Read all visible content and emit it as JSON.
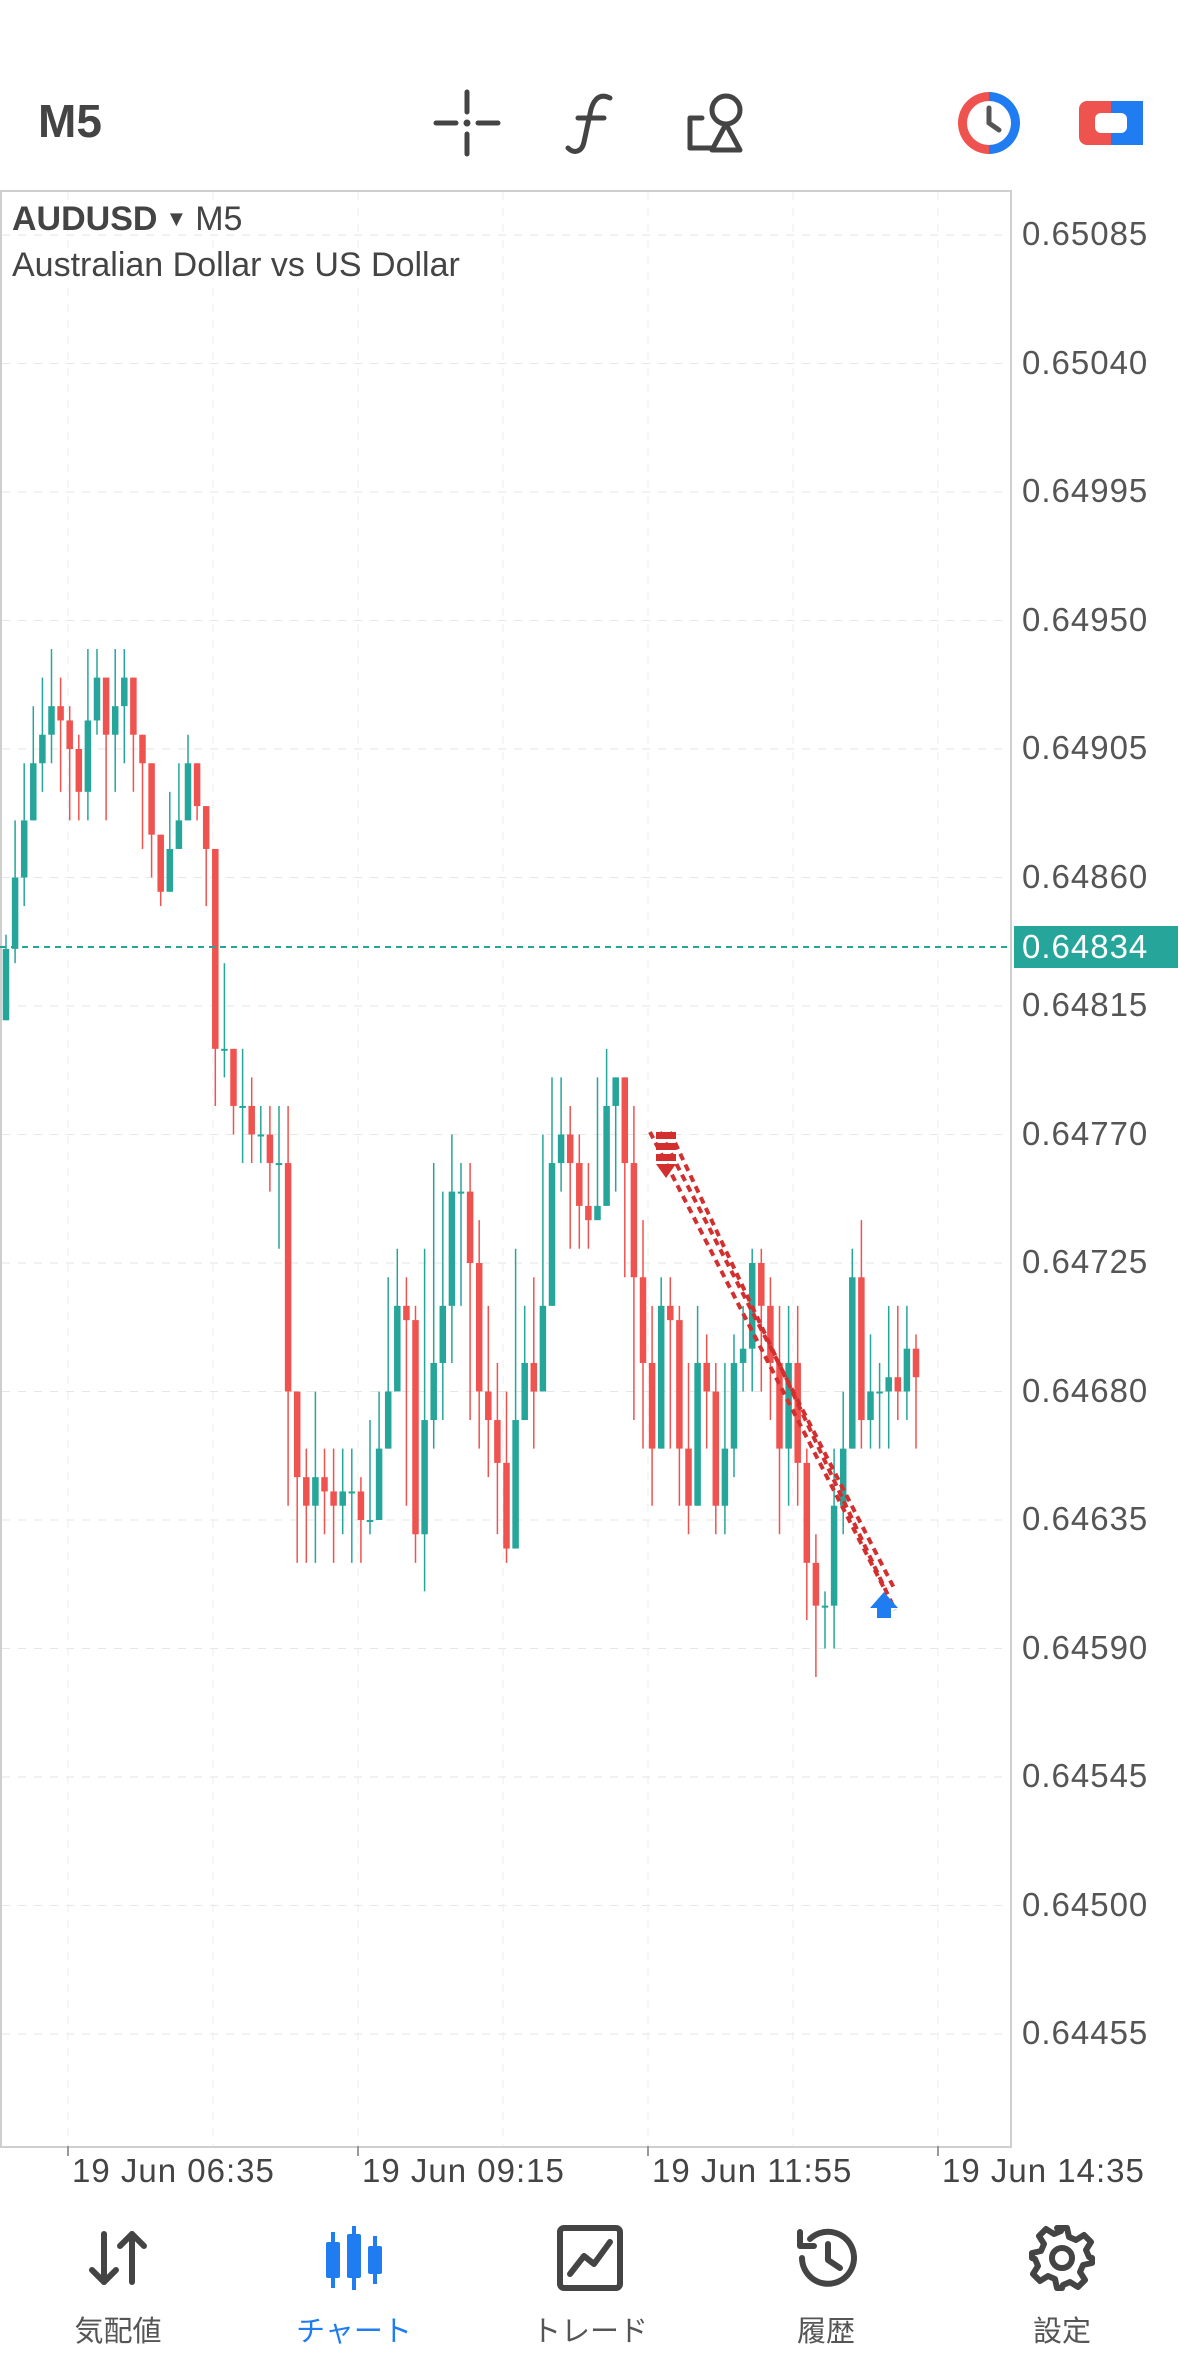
{
  "toolbar": {
    "timeframe": "M5",
    "icons": [
      "crosshair-icon",
      "function-icon",
      "objects-icon",
      "one-click-trading-icon",
      "trade-icon"
    ]
  },
  "chart": {
    "symbol": "AUDUSD",
    "timeframe": "M5",
    "description": "Australian Dollar vs US Dollar",
    "current_price": "0.64834",
    "price_labels": [
      "0.65085",
      "0.65040",
      "0.64995",
      "0.64950",
      "0.64905",
      "0.64860",
      "0.64815",
      "0.64770",
      "0.64725",
      "0.64680",
      "0.64635",
      "0.64590",
      "0.64545",
      "0.64500",
      "0.64455"
    ],
    "time_labels": [
      "19 Jun 06:35",
      "19 Jun 09:15",
      "19 Jun 11:55",
      "19 Jun 14:35"
    ],
    "colors": {
      "bull": "#26a69a",
      "bear": "#ef5350",
      "trade_line": "#d32f2f",
      "buy_arrow": "#1f7cf1"
    }
  },
  "chart_data": {
    "type": "candlestick",
    "title": "AUDUSD",
    "xlabel": "",
    "ylabel": "",
    "ylim": [
      0.6441,
      0.6511
    ],
    "grid": true,
    "x_ticks": [
      "19 Jun 06:35",
      "19 Jun 09:15",
      "19 Jun 11:55",
      "19 Jun 14:35"
    ],
    "y_ticks": [
      0.65085,
      0.6504,
      0.64995,
      0.6495,
      0.64905,
      0.6486,
      0.64815,
      0.6477,
      0.64725,
      0.6468,
      0.64635,
      0.6459,
      0.64545,
      0.645,
      0.64455
    ],
    "current_price": 0.64834,
    "close": [
      0.64835,
      0.6486,
      0.6488,
      0.649,
      0.6491,
      0.6492,
      0.64915,
      0.64905,
      0.6489,
      0.64915,
      0.6493,
      0.6491,
      0.6492,
      0.6493,
      0.6491,
      0.649,
      0.64875,
      0.64855,
      0.6487,
      0.6488,
      0.649,
      0.64885,
      0.6487,
      0.648,
      0.648,
      0.6478,
      0.6478,
      0.6477,
      0.6477,
      0.6476,
      0.6476,
      0.6468,
      0.6465,
      0.6464,
      0.6465,
      0.64645,
      0.6464,
      0.64645,
      0.64645,
      0.64635,
      0.64635,
      0.6466,
      0.6468,
      0.6471,
      0.64705,
      0.6463,
      0.6467,
      0.6469,
      0.6471,
      0.6475,
      0.6475,
      0.64725,
      0.6468,
      0.6467,
      0.64655,
      0.64625,
      0.6467,
      0.6469,
      0.6468,
      0.6471,
      0.6476,
      0.6477,
      0.6476,
      0.64745,
      0.6474,
      0.64745,
      0.6478,
      0.6479,
      0.6476,
      0.6472,
      0.6469,
      0.6466,
      0.6471,
      0.64705,
      0.6466,
      0.6464,
      0.6469,
      0.6468,
      0.6464,
      0.6466,
      0.6469,
      0.64695,
      0.64725,
      0.6471,
      0.6469,
      0.6466,
      0.6469,
      0.64655,
      0.6462,
      0.64605,
      0.64605,
      0.6464,
      0.6466,
      0.6472,
      0.6467,
      0.6468,
      0.6468,
      0.64685,
      0.6468,
      0.64695,
      0.64685
    ],
    "high": [
      0.6484,
      0.6488,
      0.649,
      0.6492,
      0.6493,
      0.6494,
      0.6493,
      0.6492,
      0.6491,
      0.6494,
      0.6494,
      0.6492,
      0.6494,
      0.6494,
      0.6493,
      0.6491,
      0.6489,
      0.6487,
      0.6489,
      0.649,
      0.6491,
      0.649,
      0.6488,
      0.6483,
      0.6483,
      0.648,
      0.648,
      0.6479,
      0.6478,
      0.6478,
      0.6478,
      0.6478,
      0.6467,
      0.6466,
      0.6468,
      0.6466,
      0.6466,
      0.6466,
      0.6466,
      0.6465,
      0.6467,
      0.6468,
      0.6472,
      0.6473,
      0.6472,
      0.6471,
      0.6473,
      0.6476,
      0.6475,
      0.6477,
      0.6476,
      0.6476,
      0.6474,
      0.6471,
      0.6469,
      0.6468,
      0.6473,
      0.6471,
      0.6472,
      0.6477,
      0.6479,
      0.6479,
      0.6478,
      0.6477,
      0.6476,
      0.6479,
      0.648,
      0.6479,
      0.6479,
      0.6478,
      0.6474,
      0.6471,
      0.6472,
      0.6472,
      0.6471,
      0.6469,
      0.6471,
      0.647,
      0.6469,
      0.6469,
      0.647,
      0.6471,
      0.6473,
      0.6473,
      0.6472,
      0.6471,
      0.6471,
      0.6471,
      0.6466,
      0.6463,
      0.6461,
      0.6466,
      0.6468,
      0.6473,
      0.6474,
      0.647,
      0.6469,
      0.6471,
      0.6471,
      0.6471,
      0.647
    ],
    "low": [
      0.6482,
      0.6483,
      0.6485,
      0.6488,
      0.6489,
      0.649,
      0.6489,
      0.6488,
      0.6488,
      0.6488,
      0.6491,
      0.6488,
      0.6489,
      0.649,
      0.6489,
      0.6487,
      0.6486,
      0.6485,
      0.6486,
      0.6487,
      0.6488,
      0.6488,
      0.6485,
      0.6478,
      0.6479,
      0.6477,
      0.6476,
      0.6476,
      0.6476,
      0.6475,
      0.6473,
      0.6464,
      0.6462,
      0.6462,
      0.6462,
      0.6463,
      0.6462,
      0.6463,
      0.6462,
      0.6462,
      0.6463,
      0.6464,
      0.6467,
      0.6469,
      0.6464,
      0.6462,
      0.6461,
      0.6466,
      0.6467,
      0.6469,
      0.6471,
      0.6467,
      0.6466,
      0.6465,
      0.6463,
      0.6462,
      0.6463,
      0.6467,
      0.6466,
      0.6469,
      0.6474,
      0.6475,
      0.6473,
      0.6473,
      0.6473,
      0.6474,
      0.6476,
      0.6475,
      0.6472,
      0.6467,
      0.6466,
      0.6464,
      0.6466,
      0.6466,
      0.6464,
      0.6463,
      0.6464,
      0.6466,
      0.6463,
      0.6463,
      0.6465,
      0.6468,
      0.6468,
      0.6468,
      0.6467,
      0.6463,
      0.6464,
      0.6464,
      0.646,
      0.6458,
      0.6459,
      0.6459,
      0.6463,
      0.6466,
      0.6466,
      0.6466,
      0.6466,
      0.6466,
      0.6467,
      0.6467,
      0.6466
    ]
  },
  "nav": {
    "items": [
      {
        "label": "気配値",
        "icon": "quotes-arrows-icon",
        "active": false
      },
      {
        "label": "チャート",
        "icon": "chart-candles-icon",
        "active": true
      },
      {
        "label": "トレード",
        "icon": "trade-chart-icon",
        "active": false
      },
      {
        "label": "履歴",
        "icon": "history-clock-icon",
        "active": false
      },
      {
        "label": "設定",
        "icon": "settings-gear-icon",
        "active": false
      }
    ]
  }
}
